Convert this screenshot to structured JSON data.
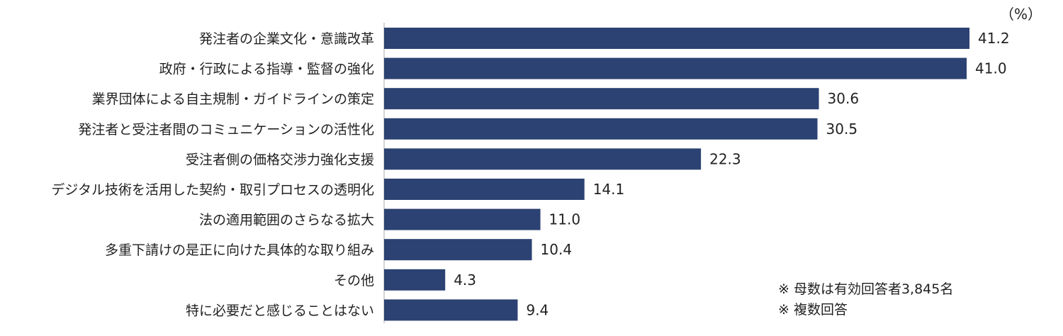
{
  "chart_data": {
    "type": "bar",
    "orientation": "horizontal",
    "unit_label": "（%）",
    "categories": [
      "発注者の企業文化・意識改革",
      "政府・行政による指導・監督の強化",
      "業界団体による自主規制・ガイドラインの策定",
      "発注者と受注者間のコミュニケーションの活性化",
      "受注者側の価格交渉力強化支援",
      "デジタル技術を活用した契約・取引プロセスの透明化",
      "法の適用範囲のさらなる拡大",
      "多重下請けの是正に向けた具体的な取り組み",
      "その他",
      "特に必要だと感じることはない"
    ],
    "values": [
      41.2,
      41.0,
      30.6,
      30.5,
      22.3,
      14.1,
      11.0,
      10.4,
      4.3,
      9.4
    ],
    "value_labels": [
      "41.2",
      "41.0",
      "30.6",
      "30.5",
      "22.3",
      "14.1",
      "11.0",
      "10.4",
      "4.3",
      "9.4"
    ],
    "bar_color": "#2c4272",
    "axis_color": "#aaaaaa",
    "xlim": [
      0,
      50
    ],
    "grid": false,
    "legend": "none"
  },
  "notes": [
    "※ 母数は有効回答者3,845名",
    "※ 複数回答"
  ]
}
